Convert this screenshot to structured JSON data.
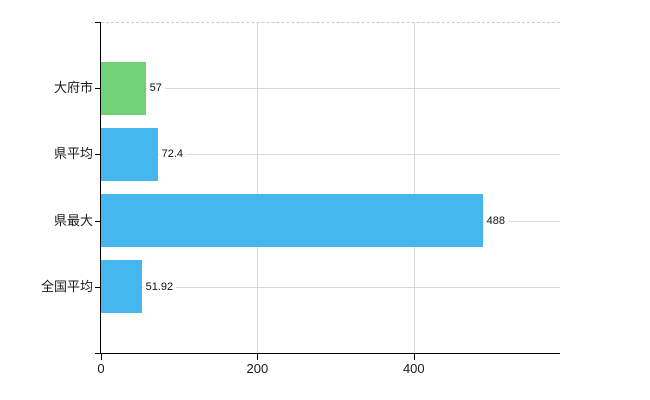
{
  "chart_data": {
    "type": "bar",
    "orientation": "horizontal",
    "title": "",
    "xlabel": "",
    "ylabel": "",
    "categories": [
      "大府市",
      "県平均",
      "県最大",
      "全国平均"
    ],
    "values": [
      57,
      72.4,
      488,
      51.92
    ],
    "value_labels": [
      "57",
      "72.4",
      "488",
      "51.92"
    ],
    "bar_colors": [
      "#72d077",
      "#45b6ee",
      "#45b6ee",
      "#45b6ee"
    ],
    "x_ticks": [
      0,
      200,
      400
    ],
    "x_tick_labels": [
      "0",
      "200",
      "400"
    ],
    "xlim": [
      0,
      587
    ],
    "grid": true,
    "legend": "none",
    "colors": {
      "bar_blue": "#45b6ee",
      "bar_green": "#72d077",
      "grid": "#d9d9d9",
      "top_border": "#cccccc",
      "axis": "#000000",
      "text": "#1a1a1a",
      "background": "#ffffff"
    }
  }
}
